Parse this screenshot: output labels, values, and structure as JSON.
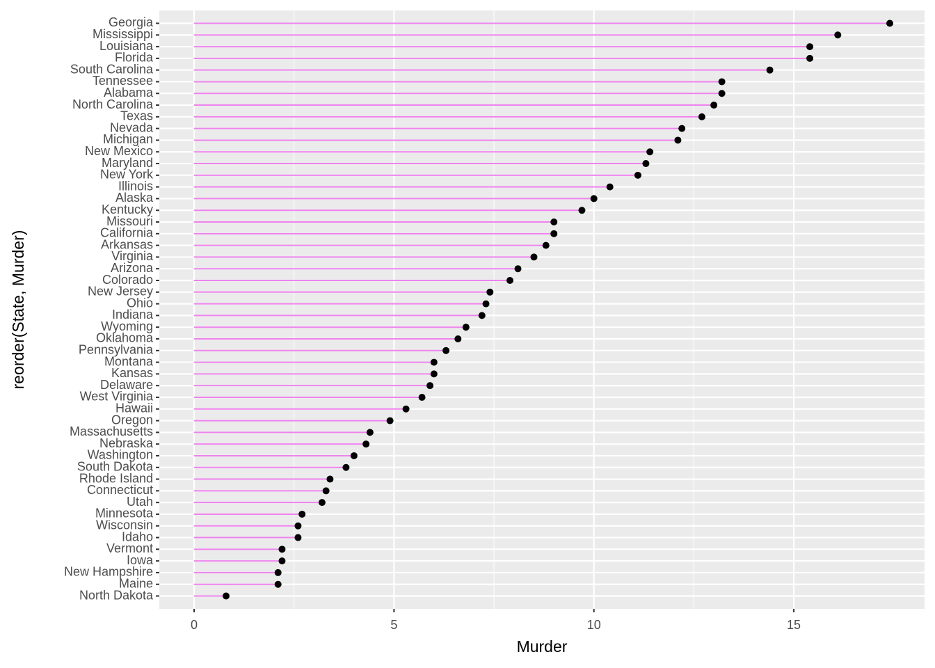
{
  "chart_data": {
    "type": "lollipop",
    "x_label": "Murder",
    "y_label": "reorder(State, Murder)",
    "categories": [
      "Georgia",
      "Mississippi",
      "Louisiana",
      "Florida",
      "South Carolina",
      "Tennessee",
      "Alabama",
      "North Carolina",
      "Texas",
      "Nevada",
      "Michigan",
      "New Mexico",
      "Maryland",
      "New York",
      "Illinois",
      "Alaska",
      "Kentucky",
      "Missouri",
      "California",
      "Arkansas",
      "Virginia",
      "Arizona",
      "Colorado",
      "New Jersey",
      "Ohio",
      "Indiana",
      "Wyoming",
      "Oklahoma",
      "Pennsylvania",
      "Montana",
      "Kansas",
      "Delaware",
      "West Virginia",
      "Hawaii",
      "Oregon",
      "Massachusetts",
      "Nebraska",
      "Washington",
      "South Dakota",
      "Rhode Island",
      "Connecticut",
      "Utah",
      "Minnesota",
      "Wisconsin",
      "Idaho",
      "Vermont",
      "Iowa",
      "New Hampshire",
      "Maine",
      "North Dakota"
    ],
    "values": [
      17.4,
      16.1,
      15.4,
      15.4,
      14.4,
      13.2,
      13.2,
      13.0,
      12.7,
      12.2,
      12.1,
      11.4,
      11.3,
      11.1,
      10.4,
      10.0,
      9.7,
      9.0,
      9.0,
      8.8,
      8.5,
      8.1,
      7.9,
      7.4,
      7.3,
      7.2,
      6.8,
      6.6,
      6.3,
      6.0,
      6.0,
      5.9,
      5.7,
      5.3,
      4.9,
      4.4,
      4.3,
      4.0,
      3.8,
      3.4,
      3.3,
      3.2,
      2.7,
      2.6,
      2.6,
      2.2,
      2.2,
      2.1,
      2.1,
      0.8
    ],
    "segment_color": "violet",
    "point_color": "#000000",
    "xlim": [
      -0.87,
      18.27
    ],
    "xticks": [
      0,
      5,
      10,
      15
    ],
    "grid": true
  }
}
